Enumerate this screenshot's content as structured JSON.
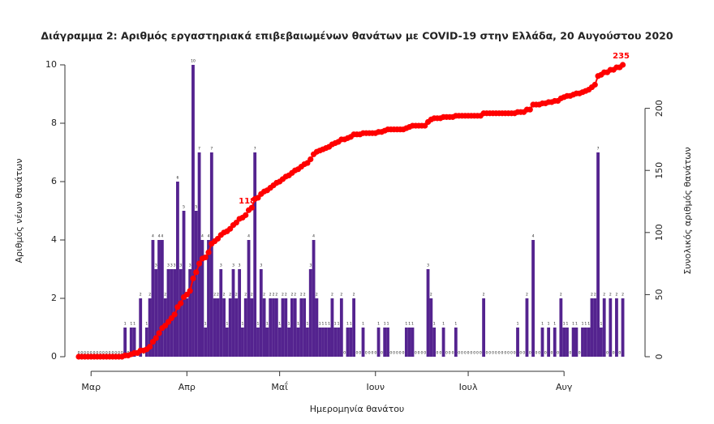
{
  "chart_data": {
    "type": "bar",
    "title": "Διάγραμμα 2: Αριθμός εργαστηριακά επιβεβαιωμένων θανάτων με COVID-19 στην Ελλάδα, 20 Αυγούστου 2020",
    "x_label": "Ημερομηνία θανάτου",
    "y_label": "Αριθμός νέων θανάτων",
    "y2_label": "Συνολικός αριθμός θανάτων",
    "categories": [
      null,
      null,
      null,
      null,
      "Μαρ",
      null,
      null,
      null,
      null,
      null,
      null,
      null,
      null,
      null,
      null,
      null,
      null,
      null,
      null,
      null,
      null,
      null,
      null,
      null,
      null,
      null,
      null,
      null,
      null,
      null,
      null,
      null,
      null,
      null,
      null,
      "Απρ",
      null,
      null,
      null,
      null,
      null,
      null,
      null,
      null,
      null,
      null,
      null,
      null,
      null,
      null,
      null,
      null,
      null,
      null,
      null,
      null,
      null,
      null,
      null,
      null,
      null,
      null,
      null,
      null,
      null,
      "Μαΐ",
      null,
      null,
      null,
      null,
      null,
      null,
      null,
      null,
      null,
      null,
      null,
      null,
      null,
      null,
      null,
      null,
      null,
      null,
      null,
      null,
      null,
      null,
      null,
      null,
      null,
      null,
      null,
      null,
      null,
      null,
      "Ιουν",
      null,
      null,
      null,
      null,
      null,
      null,
      null,
      null,
      null,
      null,
      null,
      null,
      null,
      null,
      null,
      null,
      null,
      null,
      null,
      null,
      null,
      null,
      null,
      null,
      null,
      null,
      null,
      null,
      null,
      "Ιουλ",
      null,
      null,
      null,
      null,
      null,
      null,
      null,
      null,
      null,
      null,
      null,
      null,
      null,
      null,
      null,
      null,
      null,
      null,
      null,
      null,
      null,
      null,
      null,
      null,
      null,
      null,
      null,
      null,
      null,
      null,
      "Αυγ",
      null,
      null,
      null,
      null,
      null,
      null,
      null,
      null,
      null,
      null,
      null,
      null,
      null,
      null,
      null,
      null,
      null,
      null,
      null
    ],
    "series": [
      {
        "type": "bar",
        "color": "#54238f",
        "values": [
          0,
          0,
          0,
          0,
          0,
          0,
          0,
          0,
          0,
          0,
          0,
          0,
          0,
          0,
          0,
          1,
          0,
          1,
          1,
          0,
          2,
          0,
          1,
          2,
          4,
          3,
          4,
          4,
          2,
          3,
          3,
          3,
          6,
          3,
          5,
          2,
          3,
          10,
          5,
          7,
          4,
          1,
          4,
          7,
          2,
          2,
          3,
          2,
          1,
          2,
          3,
          2,
          3,
          1,
          2,
          4,
          2,
          7,
          1,
          3,
          2,
          1,
          2,
          2,
          2,
          1,
          2,
          2,
          1,
          2,
          2,
          1,
          2,
          2,
          1,
          3,
          4,
          2,
          1,
          1,
          1,
          1,
          2,
          1,
          1,
          2,
          0,
          1,
          1,
          2,
          0,
          0,
          1,
          0,
          0,
          0,
          0,
          1,
          0,
          1,
          1,
          0,
          0,
          0,
          0,
          0,
          1,
          1,
          1,
          0,
          0,
          0,
          0,
          3,
          2,
          1,
          0,
          0,
          1,
          0,
          0,
          0,
          1,
          0,
          0,
          0,
          0,
          0,
          0,
          0,
          0,
          2,
          0,
          0,
          0,
          0,
          0,
          0,
          0,
          0,
          0,
          0,
          1,
          0,
          0,
          2,
          0,
          4,
          0,
          0,
          1,
          0,
          1,
          0,
          1,
          0,
          2,
          1,
          1,
          0,
          1,
          1,
          0,
          1,
          1,
          1,
          2,
          2,
          7,
          1,
          2,
          0,
          2,
          0,
          2,
          0,
          2
        ]
      },
      {
        "type": "line",
        "axis": "y2",
        "color": "#ff0000",
        "values": [
          0,
          0,
          0,
          0,
          0,
          0,
          0,
          0,
          0,
          0,
          0,
          0,
          0,
          0,
          0,
          1,
          1,
          2,
          3,
          3,
          5,
          5,
          6,
          8,
          12,
          15,
          19,
          23,
          25,
          28,
          31,
          34,
          40,
          43,
          48,
          50,
          53,
          63,
          68,
          75,
          79,
          80,
          84,
          91,
          93,
          95,
          98,
          100,
          101,
          103,
          106,
          108,
          111,
          112,
          114,
          118,
          120,
          127,
          128,
          131,
          133,
          134,
          136,
          138,
          140,
          141,
          143,
          145,
          146,
          148,
          150,
          151,
          153,
          155,
          156,
          159,
          163,
          165,
          166,
          167,
          168,
          169,
          171,
          172,
          173,
          175,
          175,
          176,
          177,
          179,
          179,
          179,
          180,
          180,
          180,
          180,
          180,
          181,
          181,
          182,
          183,
          183,
          183,
          183,
          183,
          183,
          184,
          185,
          186,
          186,
          186,
          186,
          186,
          189,
          191,
          192,
          192,
          192,
          193,
          193,
          193,
          193,
          194,
          194,
          194,
          194,
          194,
          194,
          194,
          194,
          194,
          196,
          196,
          196,
          196,
          196,
          196,
          196,
          196,
          196,
          196,
          196,
          197,
          197,
          197,
          199,
          199,
          203,
          203,
          203,
          204,
          204,
          205,
          205,
          206,
          206,
          208,
          209,
          210,
          210,
          211,
          212,
          212,
          213,
          214,
          215,
          217,
          219,
          226,
          227,
          229,
          229,
          231,
          231,
          233,
          233,
          235
        ],
        "value_labels": [
          null,
          null,
          null,
          null,
          null,
          null,
          null,
          null,
          null,
          null,
          null,
          null,
          null,
          null,
          null,
          null,
          null,
          null,
          null,
          null,
          null,
          null,
          null,
          null,
          null,
          null,
          null,
          null,
          null,
          null,
          null,
          null,
          null,
          null,
          null,
          null,
          null,
          null,
          null,
          null,
          null,
          null,
          null,
          null,
          null,
          null,
          null,
          null,
          null,
          null,
          null,
          null,
          null,
          null,
          null,
          "118",
          null,
          null,
          null,
          null,
          null,
          null,
          null,
          null,
          null,
          null,
          null,
          null,
          null,
          null,
          null,
          null,
          null,
          null,
          null,
          null,
          null,
          null,
          null,
          null,
          null,
          null,
          null,
          null,
          null,
          null,
          null,
          null,
          null,
          null,
          null,
          null,
          null,
          null,
          null,
          null,
          null,
          null,
          null,
          null,
          null,
          null,
          null,
          null,
          null,
          null,
          null,
          null,
          null,
          null,
          null,
          null,
          null,
          null,
          null,
          null,
          null,
          null,
          null,
          null,
          null,
          null,
          null,
          null,
          null,
          null,
          null,
          null,
          null,
          null,
          null,
          null,
          null,
          null,
          null,
          null,
          null,
          null,
          null,
          null,
          null,
          null,
          null,
          null,
          null,
          null,
          null,
          null,
          null,
          null,
          null,
          null,
          null,
          null,
          null,
          null,
          null,
          null,
          null,
          null,
          null,
          null,
          null,
          null,
          null,
          null,
          null,
          null,
          null,
          null,
          null,
          null,
          null,
          null,
          null,
          null,
          "235"
        ]
      }
    ],
    "ylim": [
      0,
      10
    ],
    "yticks": [
      0,
      2,
      4,
      6,
      8,
      10
    ],
    "y2lim": [
      0,
      235
    ],
    "y2ticks": [
      0,
      50,
      100,
      150,
      200
    ]
  }
}
